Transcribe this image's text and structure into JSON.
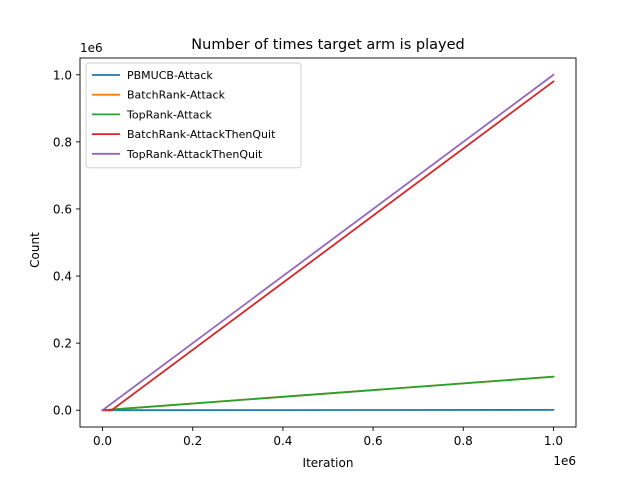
{
  "chart_data": {
    "type": "line",
    "title": "Number of times target arm is played",
    "xlabel": "Iteration",
    "ylabel": "Count",
    "x_offset_label": "1e6",
    "y_offset_label": "1e6",
    "xlim": [
      -0.05,
      1.05
    ],
    "ylim": [
      -0.05,
      1.05
    ],
    "xticks": [
      0.0,
      0.2,
      0.4,
      0.6,
      0.8,
      1.0
    ],
    "yticks": [
      0.0,
      0.2,
      0.4,
      0.6,
      0.8,
      1.0
    ],
    "xtick_labels": [
      "0.0",
      "0.2",
      "0.4",
      "0.6",
      "0.8",
      "1.0"
    ],
    "ytick_labels": [
      "0.0",
      "0.2",
      "0.4",
      "0.6",
      "0.8",
      "1.0"
    ],
    "units": "x and y values in millions (1e6)",
    "grid": false,
    "legend_position": "upper-left",
    "series": [
      {
        "name": "PBMUCB-Attack",
        "color": "#1f77b4",
        "x": [
          0,
          1.0
        ],
        "y": [
          0,
          0.001
        ]
      },
      {
        "name": "BatchRank-Attack",
        "color": "#ff7f0e",
        "x": [
          0,
          1.0
        ],
        "y": [
          0,
          0.1
        ]
      },
      {
        "name": "TopRank-Attack",
        "color": "#2ca02c",
        "x": [
          0,
          1.0
        ],
        "y": [
          0,
          0.1
        ]
      },
      {
        "name": "BatchRank-AttackThenQuit",
        "color": "#d62728",
        "x": [
          0,
          0.02,
          1.0
        ],
        "y": [
          0,
          0,
          0.98
        ]
      },
      {
        "name": "TopRank-AttackThenQuit",
        "color": "#9467bd",
        "x": [
          0,
          1.0
        ],
        "y": [
          0,
          1.0
        ]
      }
    ]
  }
}
